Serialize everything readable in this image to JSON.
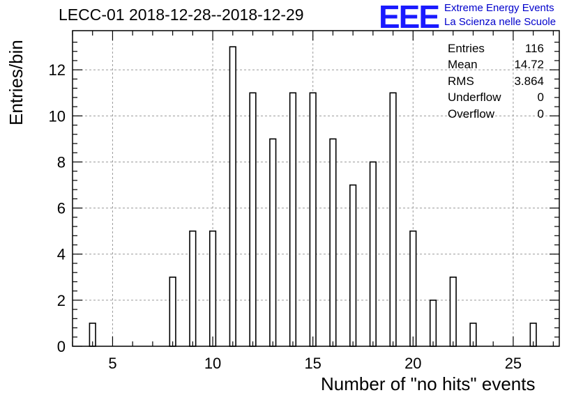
{
  "title": "LECC-01 2018-12-28--2018-12-29",
  "logo": {
    "mark": "EEE",
    "line1": "Extreme Energy Events",
    "line2": "La Scienza nelle Scuole"
  },
  "stats": [
    {
      "label": "Entries",
      "value": "116"
    },
    {
      "label": "Mean",
      "value": "14.72"
    },
    {
      "label": "RMS",
      "value": "3.864"
    },
    {
      "label": "Underflow",
      "value": "0"
    },
    {
      "label": "Overflow",
      "value": "0"
    }
  ],
  "chart_data": {
    "type": "bar",
    "title": "LECC-01 2018-12-28--2018-12-29",
    "xlabel": "Number of \"no hits\" events",
    "ylabel": "Entries/bin",
    "xlim": [
      3,
      27.3
    ],
    "ylim": [
      0,
      13.7
    ],
    "xticks": [
      5,
      10,
      15,
      20,
      25
    ],
    "yticks": [
      0,
      2,
      4,
      6,
      8,
      10,
      12
    ],
    "grid": true,
    "bar_width": 0.3,
    "x": [
      4,
      8,
      9,
      10,
      11,
      12,
      13,
      14,
      15,
      16,
      17,
      18,
      19,
      20,
      21,
      22,
      23,
      26
    ],
    "values": [
      1,
      3,
      5,
      5,
      13,
      11,
      9,
      11,
      11,
      9,
      7,
      8,
      11,
      5,
      2,
      3,
      1,
      1
    ]
  }
}
